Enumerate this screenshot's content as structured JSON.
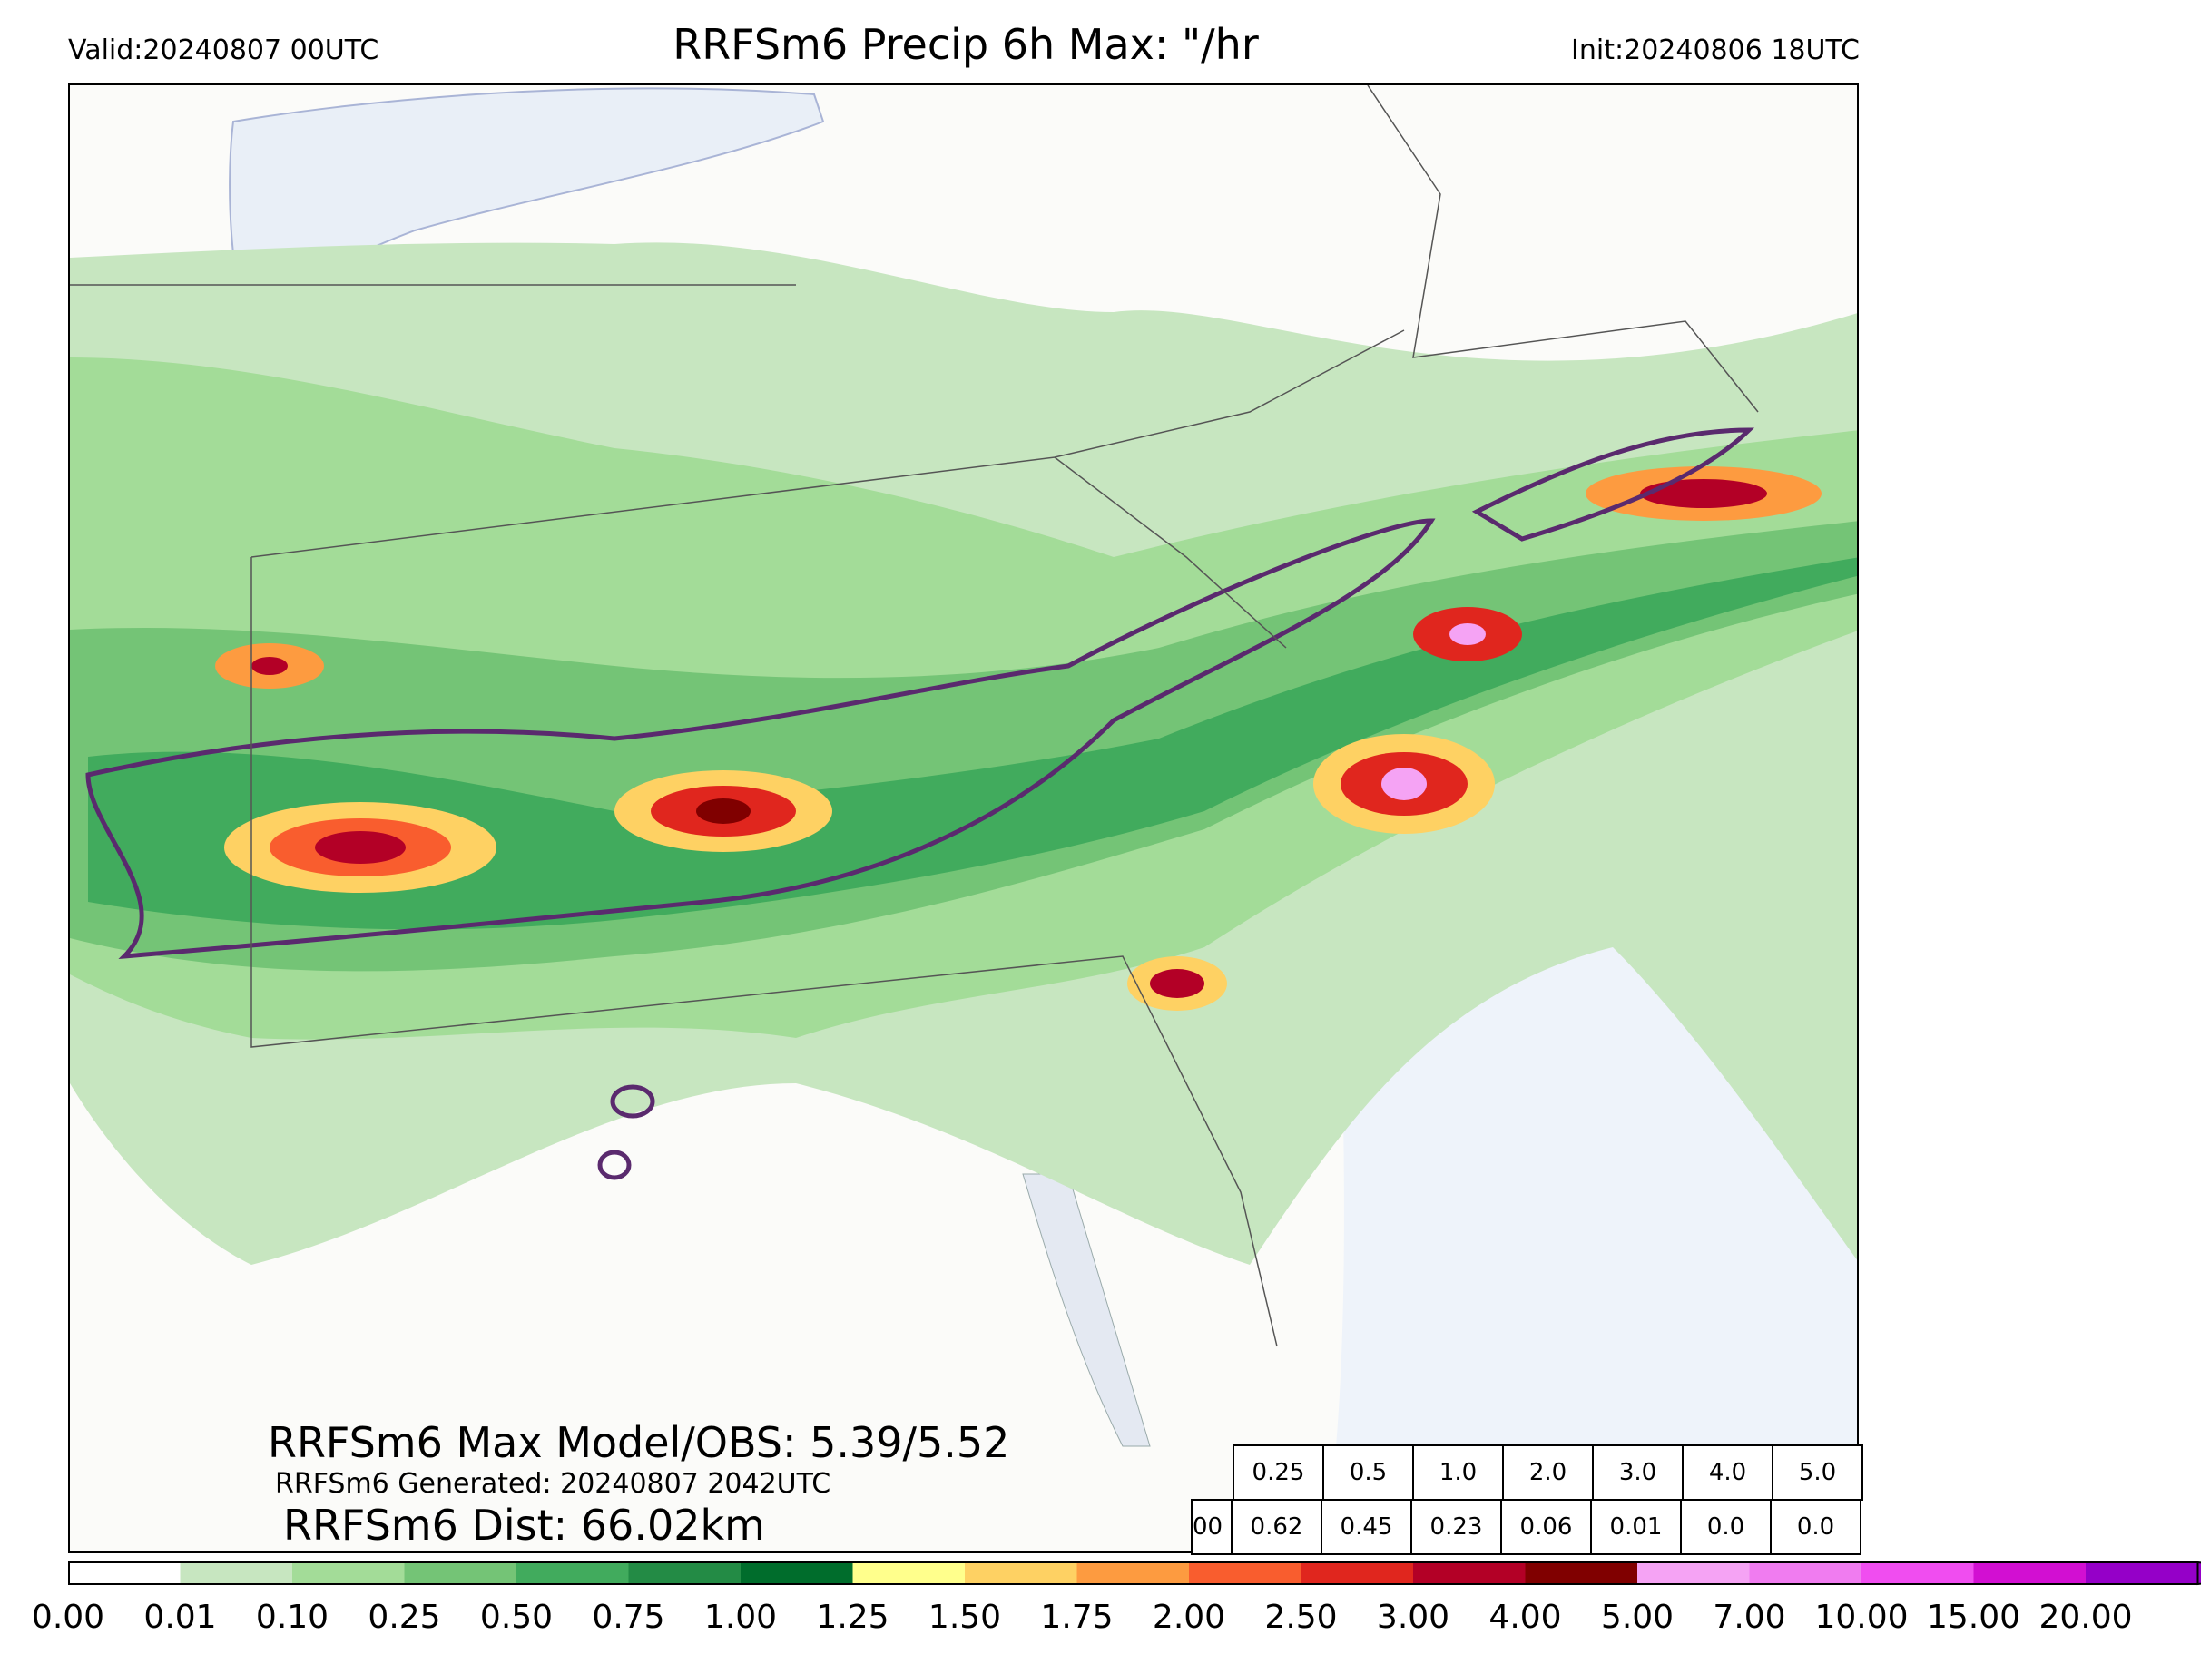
{
  "header": {
    "valid": "Valid:20240807 00UTC",
    "title": "RRFSm6 Precip 6h Max: \"/hr",
    "init": "Init:20240806 18UTC"
  },
  "stats": {
    "model_obs": "RRFSm6 Max Model/OBS: 5.39/5.52",
    "generated": "RRFSm6 Generated: 20240807 2042UTC",
    "dist": "RRFSm6 Dist: 66.02km"
  },
  "prob_table": {
    "thresholds": [
      "0.25",
      "0.5",
      "1.0",
      "2.0",
      "3.0",
      "4.0",
      "5.0"
    ],
    "first_cell": "00",
    "values": [
      "0.62",
      "0.45",
      "0.23",
      "0.06",
      "0.01",
      "0.0",
      "0.0"
    ]
  },
  "colorbar": {
    "ticks": [
      "0.00",
      "0.01",
      "0.10",
      "0.25",
      "0.50",
      "0.75",
      "1.00",
      "1.25",
      "1.50",
      "1.75",
      "2.00",
      "2.50",
      "3.00",
      "4.00",
      "5.00",
      "7.00",
      "10.00",
      "15.00",
      "20.00"
    ],
    "colors": [
      "#ffffff",
      "#c7e6c0",
      "#a3dc98",
      "#74c476",
      "#41ab5d",
      "#238b45",
      "#006d2c",
      "#ffff8c",
      "#fed163",
      "#fd9b40",
      "#f95d2e",
      "#e0261e",
      "#b30026",
      "#800000",
      "#f5a3f4",
      "#f07cf0",
      "#f04df0",
      "#d20fd2",
      "#9500c8"
    ]
  },
  "colors": {
    "water": "#eef3fa",
    "observed_contour": "#5a2a6e",
    "boundary": "#555555"
  }
}
